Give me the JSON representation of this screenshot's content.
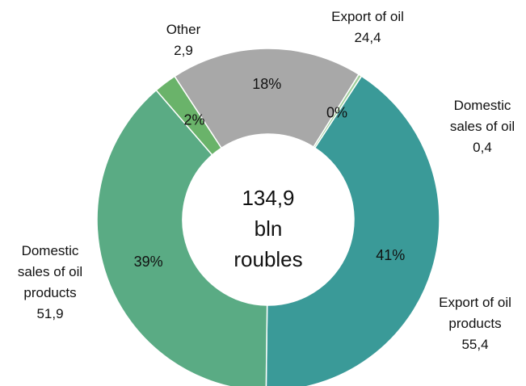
{
  "chart_data": {
    "type": "pie",
    "variant": "donut",
    "center_text": [
      "134,9",
      "bln",
      "roubles"
    ],
    "slices": [
      {
        "name": "Export of oil products",
        "value": 55.4,
        "value_text": "55,4",
        "percent_text": "41%",
        "color": "#3a9a98"
      },
      {
        "name": "Domestic sales of oil products",
        "value": 51.9,
        "value_text": "51,9",
        "percent_text": "39%",
        "color": "#5aab84"
      },
      {
        "name": "Other",
        "value": 2.9,
        "value_text": "2,9",
        "percent_text": "2%",
        "color": "#6ab36a"
      },
      {
        "name": "Export of oil",
        "value": 24.4,
        "value_text": "24,4",
        "percent_text": "18%",
        "color": "#a8a8a8"
      },
      {
        "name": "Domestic sales of oil",
        "value": 0.4,
        "value_text": "0,4",
        "percent_text": "0%",
        "color": "#9fcf9a"
      }
    ],
    "outer_labels": [
      {
        "lines": [
          "Export of oil",
          "products",
          "55,4"
        ]
      },
      {
        "lines": [
          "Domestic",
          "sales of oil",
          "products",
          "51,9"
        ]
      },
      {
        "lines": [
          "Other",
          "2,9"
        ]
      },
      {
        "lines": [
          "Export of oil",
          "24,4"
        ]
      },
      {
        "lines": [
          "Domestic",
          "sales of oil",
          "0,4"
        ]
      }
    ]
  }
}
